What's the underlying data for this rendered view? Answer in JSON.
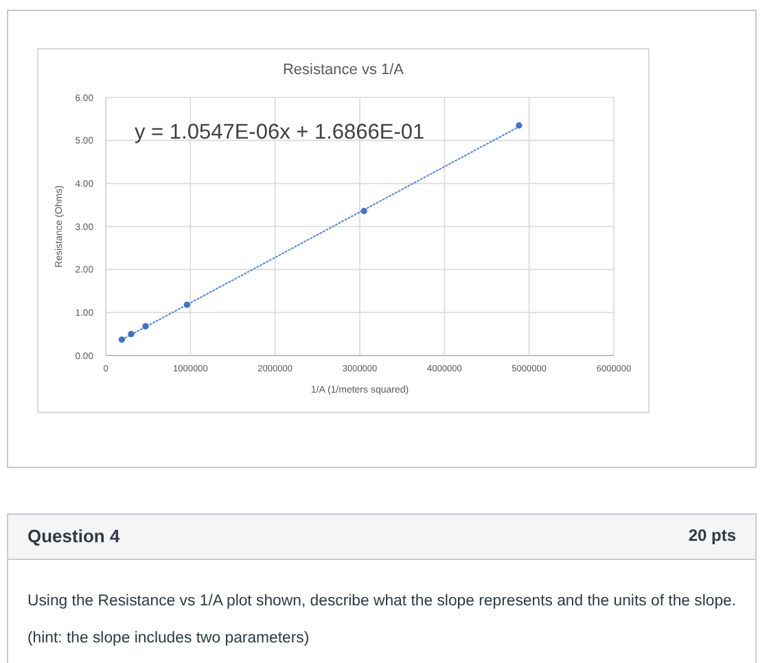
{
  "chart_data": {
    "type": "scatter",
    "title": "Resistance vs 1/A",
    "xlabel": "1/A (1/meters squared)",
    "ylabel": "Resistance (Ohms)",
    "series": [
      {
        "color": "#4472c4",
        "x": [
          190000,
          300000,
          470000,
          960000,
          3050000,
          4880000
        ],
        "values": [
          0.37,
          0.5,
          0.68,
          1.18,
          3.36,
          5.35
        ]
      },
      {
        "type": "line",
        "color": "#5b8fd9",
        "x": [
          190000,
          4880000
        ],
        "values": [
          0.37,
          5.32
        ],
        "line_style": "dotted",
        "marker": "none"
      }
    ],
    "xlim": [
      0,
      6000000
    ],
    "xticks": [
      0,
      1000000,
      2000000,
      3000000,
      4000000,
      5000000,
      6000000
    ],
    "ylim": [
      0,
      6
    ],
    "yticks": [
      {
        "value": 0,
        "label": "0.00"
      },
      {
        "value": 1,
        "label": "1.00"
      },
      {
        "value": 2,
        "label": "2.00"
      },
      {
        "value": 3,
        "label": "3.00"
      },
      {
        "value": 4,
        "label": "4.00"
      },
      {
        "value": 5,
        "label": "5.00"
      },
      {
        "value": 6,
        "label": "6.00"
      }
    ],
    "grid": true,
    "marker": "circle",
    "annotations": [
      "y = 1.0547E-06x + 1.6866E-01",
      "Question 4",
      "20 pts",
      "Using the Resistance vs 1/A plot shown, describe what the slope represents and the units of the slope.",
      "(hint: the slope includes two parameters)"
    ]
  }
}
